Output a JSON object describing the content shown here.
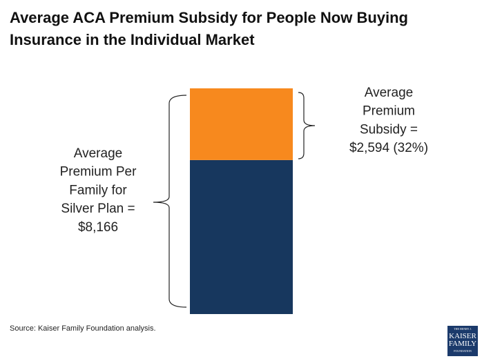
{
  "chart_data": {
    "type": "stacked-bar",
    "title": "Average ACA Premium Subsidy for People Now Buying Insurance in the Individual Market",
    "series": [
      {
        "color": "#17375e",
        "values": [
          5572
        ]
      },
      {
        "color": "#f7891e",
        "values": [
          2594
        ]
      }
    ],
    "annotations": [
      {
        "lines": [
          "Average",
          "Premium",
          "Subsidy =",
          "$2,594 (32%)"
        ]
      },
      {
        "lines": [
          "Average",
          "Premium Per",
          "Family for",
          "Silver Plan =",
          "$8,166"
        ]
      }
    ],
    "source": "Source: Kaiser Family Foundation analysis.",
    "logo": [
      "THE HENRY J.",
      "KAISER",
      "FAMILY",
      "FOUNDATION"
    ]
  }
}
